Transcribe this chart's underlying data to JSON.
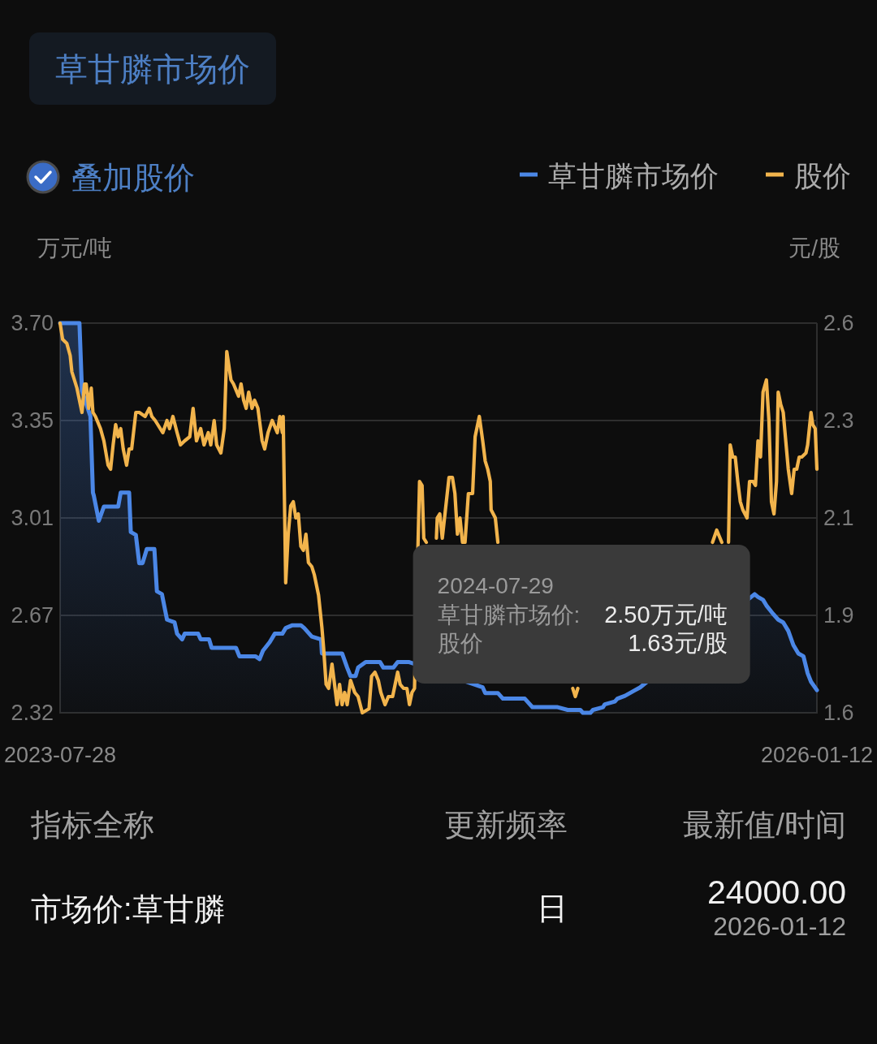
{
  "chart_data": {
    "type": "line",
    "title": "草甘膦市场价",
    "ylabel": "万元/吨",
    "y2label": "元/股",
    "xlim": [
      "2023-07-28",
      "2026-01-12"
    ],
    "xticks": [
      "2023-07-28",
      "2026-01-12"
    ],
    "ylim": [
      2.32,
      3.7
    ],
    "yticks": [
      2.32,
      {
        "value": 2.665,
        "label": "2.67"
      },
      3.01,
      {
        "value": 3.355,
        "label": "3.35"
      },
      {
        "value": 3.7,
        "label": "3.70"
      }
    ],
    "y2lim": [
      1.62,
      2.58
    ],
    "y2ticks": [
      {
        "value": 1.62,
        "label": "1.6"
      },
      {
        "value": 1.86,
        "label": "1.9"
      },
      2.1,
      {
        "value": 2.34,
        "label": "2.3"
      },
      {
        "value": 2.58,
        "label": "2.6"
      }
    ],
    "grid": "y",
    "legend": "top right",
    "annotations": [
      "叠加股价",
      "2024-07-29",
      "草甘膦市场价:",
      "2.50万元/吨",
      "股价",
      "1.63元/股",
      "指标全称",
      "更新频率",
      "最新值/时间",
      "市场价:草甘膦",
      "日",
      "24000.00",
      "2026-01-12"
    ],
    "series": [
      {
        "name": "草甘膦市场价",
        "type": "area",
        "color": "#4b87e6",
        "x": [
          "2023-07-28",
          "2023-08-20",
          "2023-08-23",
          "2023-09-02",
          "2023-09-05",
          "2023-09-06",
          "2023-09-12",
          "2023-09-18",
          "2023-10-05",
          "2023-10-08",
          "2023-10-18",
          "2023-10-20",
          "2023-10-26",
          "2023-10-30",
          "2023-11-03",
          "2023-11-08",
          "2023-11-17",
          "2023-11-20",
          "2023-11-26",
          "2023-12-02",
          "2023-12-11",
          "2023-12-14",
          "2023-12-20",
          "2023-12-23",
          "2024-01-08",
          "2024-01-11",
          "2024-01-21",
          "2024-01-24",
          "2024-02-22",
          "2024-02-26",
          "2024-03-16",
          "2024-03-21",
          "2024-03-25",
          "2024-04-02",
          "2024-04-08",
          "2024-04-17",
          "2024-04-21",
          "2024-04-29",
          "2024-05-09",
          "2024-05-13",
          "2024-05-22",
          "2024-06-02",
          "2024-06-03",
          "2024-06-27",
          "2024-07-03",
          "2024-07-07",
          "2024-07-13",
          "2024-07-16",
          "2024-07-25",
          "2024-07-29",
          "2024-08-11",
          "2024-08-15",
          "2024-08-27",
          "2024-09-01",
          "2024-09-14",
          "2024-12-11",
          "2024-12-14",
          "2024-12-29",
          "2025-01-04",
          "2025-01-30",
          "2025-02-08",
          "2025-03-10",
          "2025-03-22",
          "2025-04-06",
          "2025-04-09",
          "2025-04-18",
          "2025-04-21",
          "2025-05-03",
          "2025-05-05",
          "2025-05-17",
          "2025-05-20",
          "2025-05-29",
          "2025-06-04",
          "2025-06-10",
          "2025-06-16",
          "2025-10-30",
          "2025-11-03",
          "2025-11-09",
          "2025-11-13",
          "2025-11-21",
          "2025-11-27",
          "2025-12-03",
          "2025-12-09",
          "2025-12-15",
          "2025-12-21",
          "2025-12-27",
          "2026-01-01",
          "2026-01-05",
          "2026-01-12"
        ],
        "values": [
          3.7,
          3.7,
          3.46,
          3.37,
          3.1,
          3.09,
          3.0,
          3.05,
          3.05,
          3.1,
          3.1,
          2.96,
          2.95,
          2.85,
          2.85,
          2.9,
          2.9,
          2.75,
          2.74,
          2.65,
          2.64,
          2.6,
          2.58,
          2.6,
          2.6,
          2.58,
          2.58,
          2.55,
          2.55,
          2.52,
          2.52,
          2.51,
          2.54,
          2.57,
          2.6,
          2.6,
          2.62,
          2.63,
          2.63,
          2.62,
          2.59,
          2.58,
          2.53,
          2.53,
          2.48,
          2.45,
          2.45,
          2.48,
          2.5,
          2.5,
          2.5,
          2.48,
          2.48,
          2.5,
          2.5,
          2.41,
          2.39,
          2.39,
          2.37,
          2.37,
          2.34,
          2.34,
          2.33,
          2.33,
          2.32,
          2.32,
          2.33,
          2.34,
          2.35,
          2.36,
          2.37,
          2.38,
          2.39,
          2.4,
          2.41,
          2.74,
          2.73,
          2.72,
          2.7,
          2.67,
          2.65,
          2.64,
          2.61,
          2.56,
          2.53,
          2.52,
          2.46,
          2.43,
          2.4
        ]
      },
      {
        "name": "股价",
        "type": "line",
        "axis": "y2",
        "color": "#f2b44c",
        "x": [
          "2023-07-28",
          "2023-07-31",
          "2023-08-05",
          "2023-08-09",
          "2023-08-11",
          "2023-08-17",
          "2023-08-23",
          "2023-08-26",
          "2023-08-28",
          "2023-08-31",
          "2023-09-03",
          "2023-09-05",
          "2023-09-08",
          "2023-09-14",
          "2023-09-18",
          "2023-09-23",
          "2023-09-26",
          "2023-09-29",
          "2023-10-02",
          "2023-10-05",
          "2023-10-08",
          "2023-10-11",
          "2023-10-15",
          "2023-10-18",
          "2023-10-21",
          "2023-10-26",
          "2023-10-30",
          "2023-11-06",
          "2023-11-11",
          "2023-11-14",
          "2023-11-18",
          "2023-11-27",
          "2023-12-02",
          "2023-12-05",
          "2023-12-09",
          "2023-12-14",
          "2023-12-18",
          "2023-12-23",
          "2023-12-29",
          "2024-01-02",
          "2024-01-06",
          "2024-01-11",
          "2024-01-15",
          "2024-01-20",
          "2024-01-23",
          "2024-01-27",
          "2024-01-30",
          "2024-02-04",
          "2024-02-08",
          "2024-02-11",
          "2024-02-16",
          "2024-02-19",
          "2024-02-25",
          "2024-02-28",
          "2024-03-02",
          "2024-03-05",
          "2024-03-08",
          "2024-03-12",
          "2024-03-15",
          "2024-03-19",
          "2024-03-24",
          "2024-03-27",
          "2024-03-31",
          "2024-04-05",
          "2024-04-11",
          "2024-04-14",
          "2024-04-17",
          "2024-04-18",
          "2024-04-21",
          "2024-04-24",
          "2024-04-27",
          "2024-04-30",
          "2024-05-03",
          "2024-05-06",
          "2024-05-09",
          "2024-05-12",
          "2024-05-15",
          "2024-05-18",
          "2024-05-22",
          "2024-05-25",
          "2024-05-30",
          "2024-06-03",
          "2024-06-05",
          "2024-06-08",
          "2024-06-11",
          "2024-06-15",
          "2024-06-18",
          "2024-06-21",
          "2024-06-24",
          "2024-06-27",
          "2024-06-30",
          "2024-07-03",
          "2024-07-07",
          "2024-07-12",
          "2024-07-16",
          "2024-07-21",
          "2024-07-29",
          "2024-08-01",
          "2024-08-05",
          "2024-08-09",
          "2024-08-12",
          "2024-08-17",
          "2024-08-21",
          "2024-08-26",
          "2024-09-01",
          "2024-09-04",
          "2024-09-08",
          "2024-09-12",
          "2024-09-15",
          "2024-09-18",
          "2024-09-21",
          "2024-09-27",
          "2024-09-30",
          "2024-10-02",
          "2024-10-05",
          "2024-10-11",
          "2024-10-17",
          "2024-10-18",
          "2024-10-21",
          "2024-10-24",
          "2024-11-01",
          "2024-11-05",
          "2024-11-08",
          "2024-11-11",
          "2024-11-14",
          "2024-11-17",
          "2024-11-20",
          "2024-11-24",
          "2024-11-29",
          "2024-12-02",
          "2024-12-07",
          "2024-12-11",
          "2024-12-14",
          "2024-12-17",
          "2024-12-20",
          "2024-12-21",
          "2024-12-26",
          "2024-12-29",
          "2025-02-01",
          "2025-03-28",
          "2025-03-31",
          "2025-04-03",
          "2025-06-01",
          "2025-09-10",
          "2025-09-15",
          "2025-09-19",
          "2025-09-21",
          "2025-09-25",
          "2025-09-29",
          "2025-10-01",
          "2025-10-04",
          "2025-10-07",
          "2025-10-10",
          "2025-10-13",
          "2025-10-16",
          "2025-10-21",
          "2025-10-24",
          "2025-10-28",
          "2025-10-31",
          "2025-11-03",
          "2025-11-06",
          "2025-11-09",
          "2025-11-13",
          "2025-11-16",
          "2025-11-19",
          "2025-11-22",
          "2025-11-25",
          "2025-11-27",
          "2025-11-30",
          "2025-12-03",
          "2025-12-06",
          "2025-12-09",
          "2025-12-13",
          "2025-12-16",
          "2025-12-19",
          "2025-12-22",
          "2025-12-25",
          "2025-12-30",
          "2026-01-01",
          "2026-01-05",
          "2026-01-07",
          "2026-01-10",
          "2026-01-12"
        ],
        "values": [
          2.58,
          2.54,
          2.53,
          2.5,
          2.46,
          2.42,
          2.36,
          2.43,
          2.43,
          2.37,
          2.42,
          2.36,
          2.35,
          2.32,
          2.29,
          2.23,
          2.22,
          2.28,
          2.33,
          2.3,
          2.32,
          2.27,
          2.23,
          2.27,
          2.27,
          2.36,
          2.36,
          2.35,
          2.37,
          2.35,
          2.34,
          2.31,
          2.34,
          2.32,
          2.35,
          2.31,
          2.28,
          2.29,
          2.3,
          2.37,
          2.29,
          2.32,
          2.28,
          2.31,
          2.28,
          2.34,
          2.28,
          2.26,
          2.32,
          2.51,
          2.44,
          2.43,
          2.4,
          2.43,
          2.39,
          2.37,
          2.41,
          2.37,
          2.39,
          2.37,
          2.29,
          2.27,
          2.31,
          2.34,
          2.31,
          2.35,
          2.31,
          2.35,
          1.94,
          2.06,
          2.13,
          2.14,
          2.1,
          2.11,
          2.03,
          2.02,
          2.06,
          1.99,
          1.98,
          1.96,
          1.91,
          1.83,
          1.78,
          1.69,
          1.68,
          1.74,
          1.69,
          1.64,
          1.69,
          1.64,
          1.67,
          1.64,
          1.7,
          1.67,
          1.66,
          1.62,
          1.63,
          1.71,
          1.72,
          1.7,
          1.67,
          1.64,
          1.66,
          1.66,
          1.72,
          1.69,
          1.68,
          1.68,
          1.64,
          1.67,
          1.68,
          2.19,
          2.18,
          2.05,
          2.04,
          null,
          2.05,
          2.1,
          2.11,
          2.05,
          2.2,
          2.2,
          2.16,
          2.06,
          2.1,
          2.04,
          2.04,
          2.16,
          2.16,
          2.3,
          2.35,
          2.29,
          2.24,
          2.22,
          2.19,
          2.12,
          2.1,
          2.04,
          null,
          1.68,
          1.66,
          1.68,
          null,
          2.04,
          2.07,
          2.05,
          2.04,
          null,
          2.04,
          2.28,
          2.25,
          2.25,
          2.19,
          2.14,
          2.12,
          2.1,
          2.19,
          2.19,
          2.18,
          2.29,
          2.25,
          2.41,
          2.44,
          2.34,
          2.14,
          2.11,
          2.19,
          2.41,
          2.38,
          2.36,
          2.29,
          2.22,
          2.16,
          2.22,
          2.22,
          2.25,
          2.25,
          2.26,
          2.28,
          2.36,
          2.33,
          2.32,
          2.22
        ]
      }
    ]
  }
}
